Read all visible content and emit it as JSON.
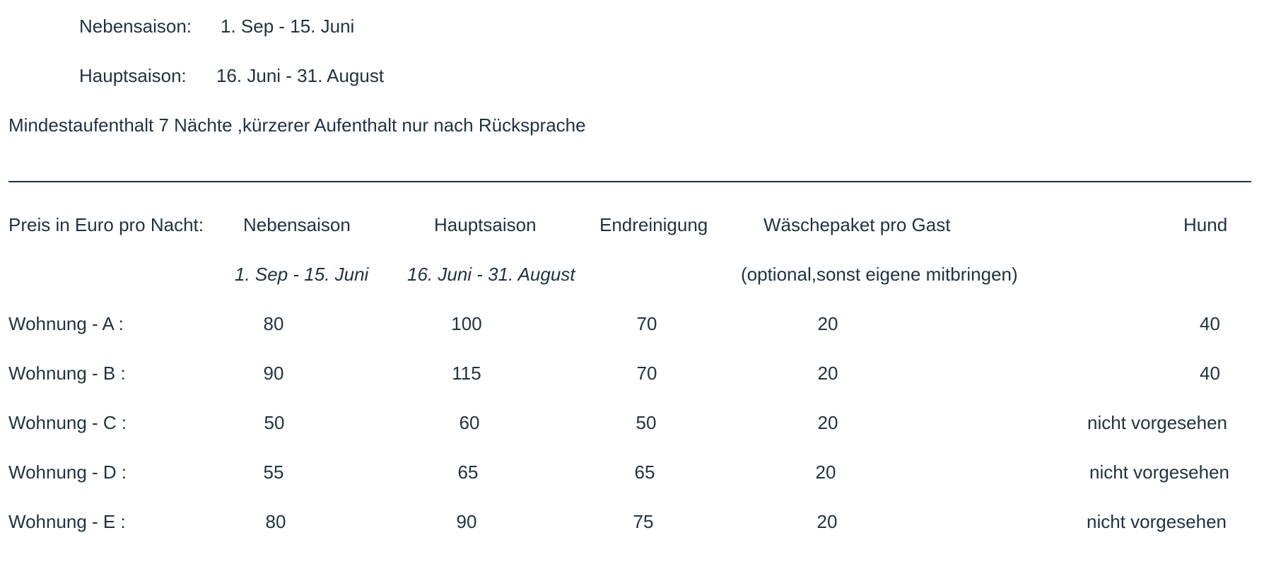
{
  "seasons": {
    "off_label": "Nebensaison:",
    "off_dates": "1. Sep - 15. Juni",
    "high_label": "Hauptsaison:",
    "high_dates": "16. Juni - 31. August"
  },
  "minimum_stay": "Mindestaufenthalt 7 Nächte ,kürzerer Aufenthalt nur nach Rücksprache",
  "table": {
    "header": {
      "first": "Preis in Euro pro Nacht:",
      "off": "Nebensaison",
      "high": "Hauptsaison",
      "cleaning": "Endreinigung",
      "laundry": "Wäschepaket pro Gast",
      "dog": "Hund"
    },
    "subheader": {
      "off": "1. Sep - 15. Juni",
      "high": "16. Juni - 31. August",
      "laundry": "(optional,sonst eigene mitbringen)"
    },
    "rows": [
      {
        "name": "Wohnung - A  :",
        "off": "80",
        "high": "100",
        "cleaning": "70",
        "laundry": "20",
        "dog": "40"
      },
      {
        "name": "Wohnung - B :",
        "off": "90",
        "high": "115",
        "cleaning": "70",
        "laundry": "20",
        "dog": "40"
      },
      {
        "name": "Wohnung - C :",
        "off": "50",
        "high": "60",
        "cleaning": "50",
        "laundry": "20",
        "dog": "nicht vorgesehen"
      },
      {
        "name": "Wohnung - D :",
        "off": "55",
        "high": "65",
        "cleaning": "65",
        "laundry": "20",
        "dog": "nicht vorgesehen"
      },
      {
        "name": "Wohnung - E :",
        "off": "80",
        "high": "90",
        "cleaning": "75",
        "laundry": "20",
        "dog": "nicht vorgesehen"
      }
    ]
  }
}
